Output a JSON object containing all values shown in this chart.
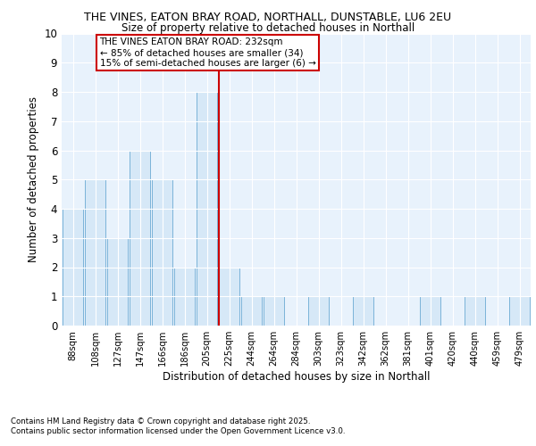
{
  "title": "THE VINES, EATON BRAY ROAD, NORTHALL, DUNSTABLE, LU6 2EU",
  "subtitle": "Size of property relative to detached houses in Northall",
  "xlabel": "Distribution of detached houses by size in Northall",
  "ylabel": "Number of detached properties",
  "categories": [
    "88sqm",
    "108sqm",
    "127sqm",
    "147sqm",
    "166sqm",
    "186sqm",
    "205sqm",
    "225sqm",
    "244sqm",
    "264sqm",
    "284sqm",
    "303sqm",
    "323sqm",
    "342sqm",
    "362sqm",
    "381sqm",
    "401sqm",
    "420sqm",
    "440sqm",
    "459sqm",
    "479sqm"
  ],
  "values": [
    4,
    5,
    3,
    6,
    5,
    2,
    8,
    2,
    1,
    1,
    0,
    1,
    0,
    1,
    0,
    0,
    1,
    0,
    1,
    0,
    1
  ],
  "bar_color": "#d6e8f7",
  "bar_edge_color": "#7ab3d9",
  "highlight_bar_index": 7,
  "highlight_line_color": "#cc0000",
  "annotation_text": "THE VINES EATON BRAY ROAD: 232sqm\n← 85% of detached houses are smaller (34)\n15% of semi-detached houses are larger (6) →",
  "annotation_box_color": "#cc0000",
  "ylim": [
    0,
    10
  ],
  "yticks": [
    0,
    1,
    2,
    3,
    4,
    5,
    6,
    7,
    8,
    9,
    10
  ],
  "background_color": "#e8f2fc",
  "grid_color": "#ffffff",
  "footer1": "Contains HM Land Registry data © Crown copyright and database right 2025.",
  "footer2": "Contains public sector information licensed under the Open Government Licence v3.0."
}
